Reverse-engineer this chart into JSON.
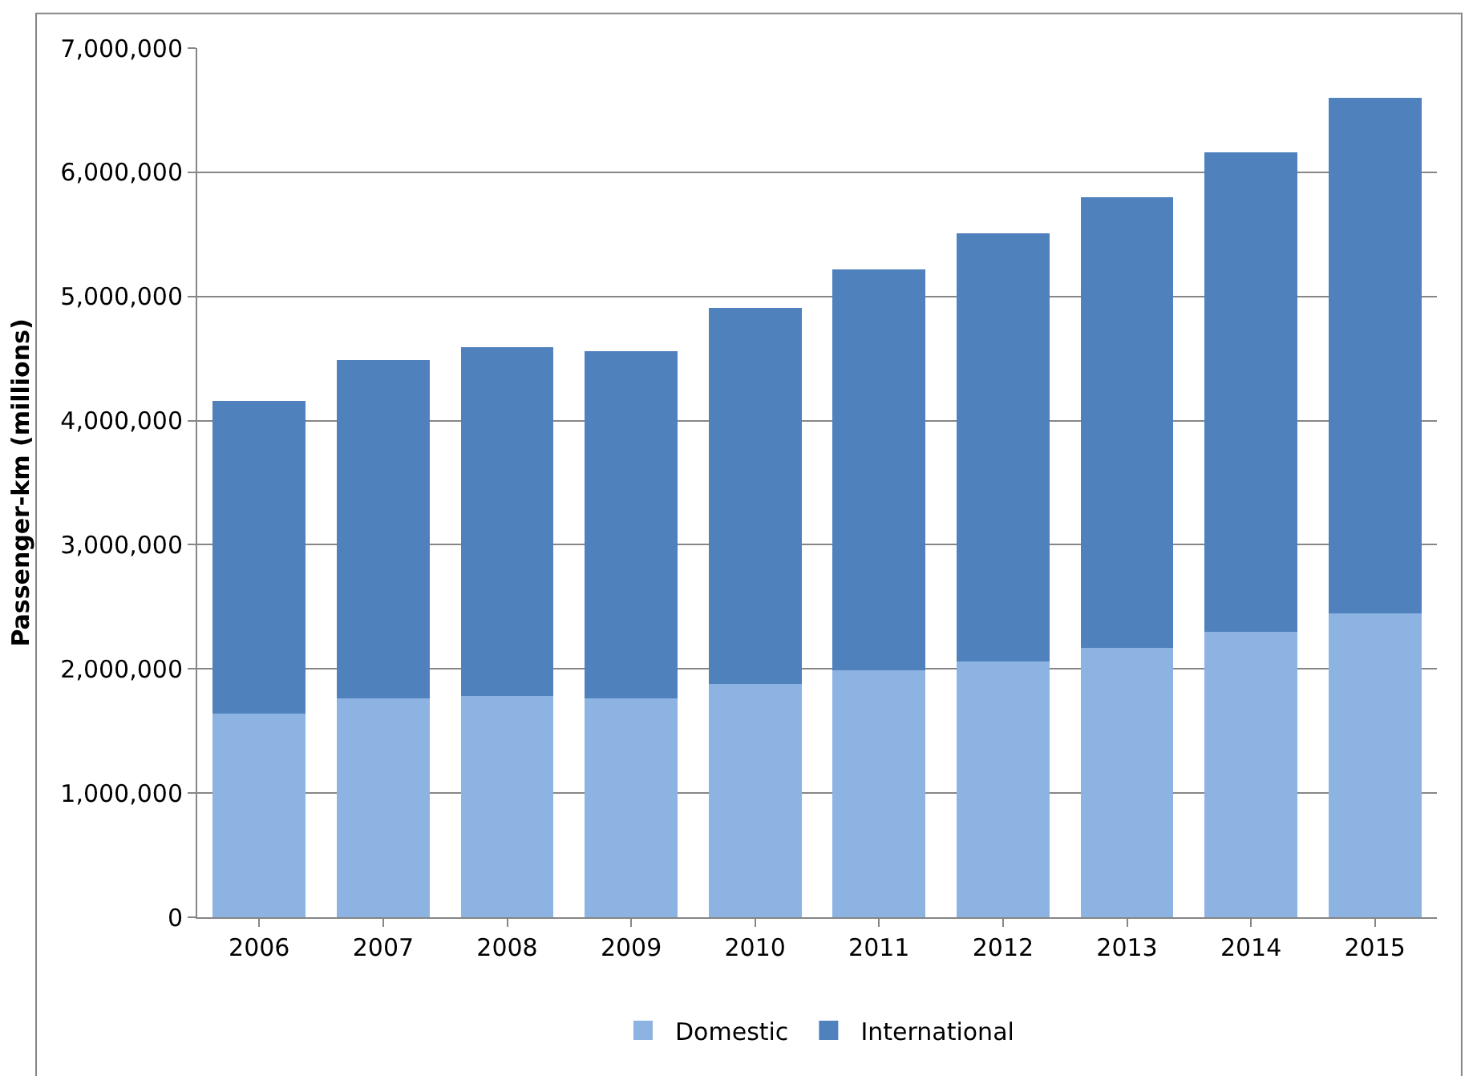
{
  "chart_data": {
    "type": "bar",
    "stacked": true,
    "ylabel": "Passenger-km (millions)",
    "categories": [
      "2006",
      "2007",
      "2008",
      "2009",
      "2010",
      "2011",
      "2012",
      "2013",
      "2014",
      "2015"
    ],
    "series": [
      {
        "name": "Domestic",
        "color": "#8db3e2",
        "values": [
          1640000,
          1760000,
          1780000,
          1760000,
          1880000,
          1990000,
          2060000,
          2170000,
          2300000,
          2450000
        ]
      },
      {
        "name": "International",
        "color": "#4f81bd",
        "values": [
          2520000,
          2730000,
          2810000,
          2800000,
          3030000,
          3230000,
          3450000,
          3630000,
          3860000,
          4150000
        ]
      }
    ],
    "ylim": [
      0,
      7000000
    ],
    "yticks": [
      {
        "value": 0,
        "label": "0"
      },
      {
        "value": 1000000,
        "label": "1,000,000"
      },
      {
        "value": 2000000,
        "label": "2,000,000"
      },
      {
        "value": 3000000,
        "label": "3,000,000"
      },
      {
        "value": 4000000,
        "label": "4,000,000"
      },
      {
        "value": 5000000,
        "label": "5,000,000"
      },
      {
        "value": 6000000,
        "label": "6,000,000"
      },
      {
        "value": 7000000,
        "label": "7,000,000"
      }
    ],
    "grid": "y",
    "legend": "bottom"
  }
}
